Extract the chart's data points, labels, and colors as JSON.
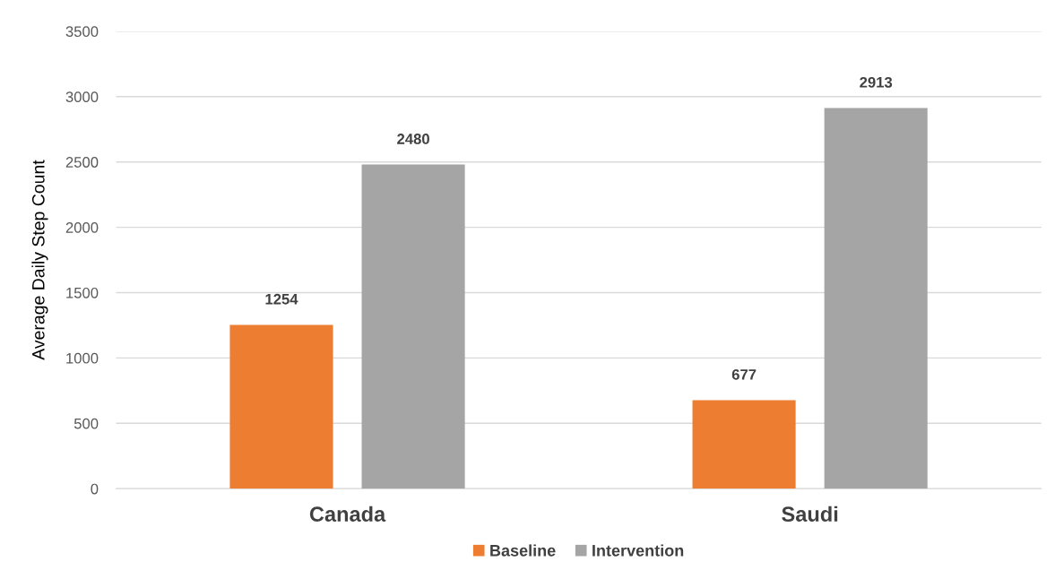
{
  "chart_data": {
    "type": "bar",
    "ylabel": "Average Daily Step Count",
    "categories": [
      "Canada",
      "Saudi"
    ],
    "series": [
      {
        "name": "Baseline",
        "color": "#ed7d31",
        "values": [
          1254,
          677
        ]
      },
      {
        "name": "Intervention",
        "color": "#a5a5a5",
        "values": [
          2480,
          2913
        ]
      }
    ],
    "ylim": [
      0,
      3500
    ],
    "yticks": [
      0,
      500,
      1000,
      1500,
      2000,
      2500,
      3000,
      3500
    ],
    "grid": "y",
    "legend": "bottom",
    "data_labels": true
  }
}
